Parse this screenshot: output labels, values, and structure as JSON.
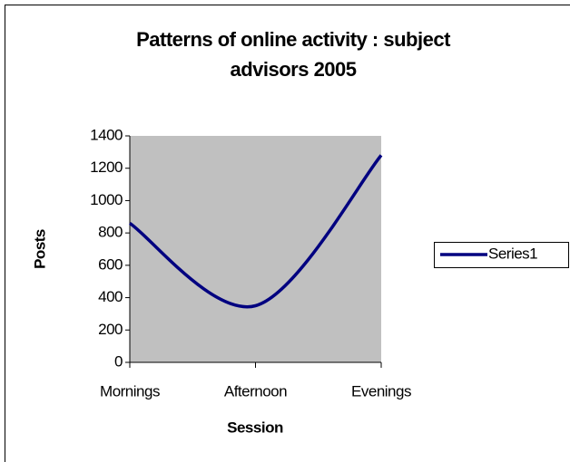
{
  "chart_data": {
    "type": "line",
    "title": "Patterns of online activity : subject advisors 2005",
    "x_label": "Session",
    "y_label": "Posts",
    "categories": [
      "Mornings",
      "Afternoon",
      "Evenings"
    ],
    "series": [
      {
        "name": "Series1",
        "color": "#000080",
        "values": [
          860,
          350,
          1280
        ]
      }
    ],
    "ylim": [
      0,
      1400
    ],
    "yticks": [
      0,
      200,
      400,
      600,
      800,
      1000,
      1200,
      1400
    ],
    "smooth": true,
    "legend": "right",
    "plot_background": "#c0c0c0"
  }
}
